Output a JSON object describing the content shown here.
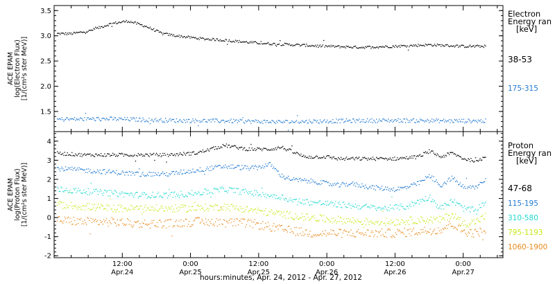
{
  "chart_data": [
    {
      "type": "scatter",
      "panel": "electron",
      "ylabel_lines": [
        "ACE EPAM",
        "log(Electron Flux)",
        "[1/(cm²s ster MeV)]"
      ],
      "ylim": [
        1.1,
        3.6
      ],
      "yticks": [
        1.5,
        2.0,
        2.5,
        3.0,
        3.5
      ],
      "ytick_labels": [
        "1.5",
        "2.0",
        "2.5",
        "3.0",
        "3.5"
      ],
      "legend_title_lines": [
        "Electron",
        "Energy ran",
        "[keV]"
      ],
      "legend_placement": "right",
      "x_range_hours": [
        0,
        79
      ],
      "series": [
        {
          "name": "38-53",
          "color": "#000000",
          "x_hours": [
            0,
            3,
            6,
            10,
            13,
            16,
            19,
            22,
            26,
            30,
            34,
            38,
            42,
            48,
            54,
            60,
            66,
            72,
            76
          ],
          "y": [
            3.05,
            3.05,
            3.1,
            3.25,
            3.3,
            3.2,
            3.05,
            3.0,
            2.95,
            2.92,
            2.88,
            2.85,
            2.83,
            2.8,
            2.78,
            2.8,
            2.83,
            2.8,
            2.8
          ]
        },
        {
          "name": "175-315",
          "color": "#1e78d2",
          "x_hours": [
            0,
            10,
            20,
            30,
            40,
            50,
            60,
            70,
            76
          ],
          "y": [
            1.35,
            1.36,
            1.33,
            1.32,
            1.3,
            1.32,
            1.33,
            1.32,
            1.32
          ]
        }
      ]
    },
    {
      "type": "scatter",
      "panel": "proton",
      "ylabel_lines": [
        "ACE EPAM",
        "log(Proton Flux)",
        "[1/(cm²s ster MeV)]"
      ],
      "ylim": [
        -2.1,
        4.5
      ],
      "yticks": [
        -2,
        -1,
        0,
        1,
        2,
        3,
        4
      ],
      "ytick_labels": [
        "-2",
        "-1",
        "0",
        "1",
        "2",
        "3",
        "4"
      ],
      "legend_title_lines": [
        "Proton",
        "Energy ran",
        "[keV]"
      ],
      "legend_placement": "right",
      "x_range_hours": [
        0,
        79
      ],
      "series": [
        {
          "name": "47-68",
          "color": "#000000",
          "x_hours": [
            0,
            5,
            10,
            15,
            20,
            25,
            30,
            34,
            38,
            40,
            44,
            48,
            50,
            52,
            56,
            60,
            64,
            66,
            68,
            70,
            72,
            74,
            76
          ],
          "y": [
            3.4,
            3.3,
            3.3,
            3.3,
            3.3,
            3.4,
            3.8,
            3.6,
            3.6,
            3.7,
            3.2,
            3.2,
            3.1,
            3.1,
            3.1,
            3.1,
            3.2,
            3.5,
            3.2,
            3.4,
            3.1,
            3.0,
            3.2
          ]
        },
        {
          "name": "115-195",
          "color": "#1e78d2",
          "x_hours": [
            0,
            5,
            10,
            15,
            20,
            25,
            30,
            35,
            38,
            40,
            42,
            46,
            50,
            52,
            56,
            60,
            62,
            64,
            66,
            68,
            70,
            72,
            74,
            76
          ],
          "y": [
            2.6,
            2.5,
            2.4,
            2.3,
            2.3,
            2.5,
            2.7,
            2.6,
            2.8,
            2.2,
            2.0,
            1.9,
            1.7,
            1.8,
            1.6,
            1.5,
            1.6,
            1.8,
            2.2,
            1.7,
            2.1,
            1.6,
            1.6,
            2.0
          ]
        },
        {
          "name": "310-580",
          "color": "#20d8d0",
          "x_hours": [
            0,
            5,
            10,
            15,
            20,
            25,
            30,
            35,
            40,
            42,
            46,
            50,
            54,
            58,
            62,
            66,
            68,
            70,
            72,
            74,
            76
          ],
          "y": [
            1.5,
            1.4,
            1.3,
            1.2,
            1.2,
            1.3,
            1.5,
            1.3,
            1.1,
            0.9,
            0.8,
            0.7,
            0.6,
            0.5,
            0.6,
            1.1,
            0.5,
            0.9,
            0.5,
            0.4,
            0.9
          ]
        },
        {
          "name": "795-1193",
          "color": "#c8e614",
          "x_hours": [
            0,
            5,
            10,
            15,
            20,
            25,
            30,
            35,
            40,
            45,
            50,
            55,
            60,
            64,
            68,
            70,
            72,
            74,
            76
          ],
          "y": [
            0.7,
            0.6,
            0.5,
            0.5,
            0.5,
            0.5,
            0.6,
            0.4,
            0.2,
            0.0,
            -0.1,
            -0.2,
            -0.2,
            -0.1,
            -0.1,
            0.2,
            -0.3,
            -0.2,
            0.1
          ]
        },
        {
          "name": "1060-1900",
          "color": "#e8891a",
          "x_hours": [
            0,
            5,
            10,
            15,
            20,
            25,
            30,
            35,
            40,
            45,
            50,
            55,
            60,
            64,
            68,
            70,
            72,
            74,
            76
          ],
          "y": [
            -0.1,
            -0.2,
            -0.2,
            -0.3,
            -0.3,
            -0.2,
            -0.2,
            -0.3,
            -0.6,
            -0.8,
            -0.8,
            -0.8,
            -0.8,
            -0.7,
            -0.6,
            -0.3,
            -0.7,
            -0.8,
            -0.6
          ]
        }
      ]
    }
  ],
  "x_axis": {
    "tick_hours": [
      12,
      24,
      36,
      48,
      60,
      72
    ],
    "tick_labels": [
      [
        "12:00",
        "Apr.24"
      ],
      [
        "0:00",
        "Apr.25"
      ],
      [
        "12:00",
        "Apr.25"
      ],
      [
        "0:00",
        "Apr.26"
      ],
      [
        "12:00",
        "Apr.26"
      ],
      [
        "0:00",
        "Apr.27"
      ]
    ],
    "minor_tick_step_hours": 3,
    "xlabel": "hours:minutes, Apr. 24, 2012 - Apr. 27, 2012"
  },
  "colors": {
    "axes": "#000000",
    "background": "#ffffff"
  }
}
